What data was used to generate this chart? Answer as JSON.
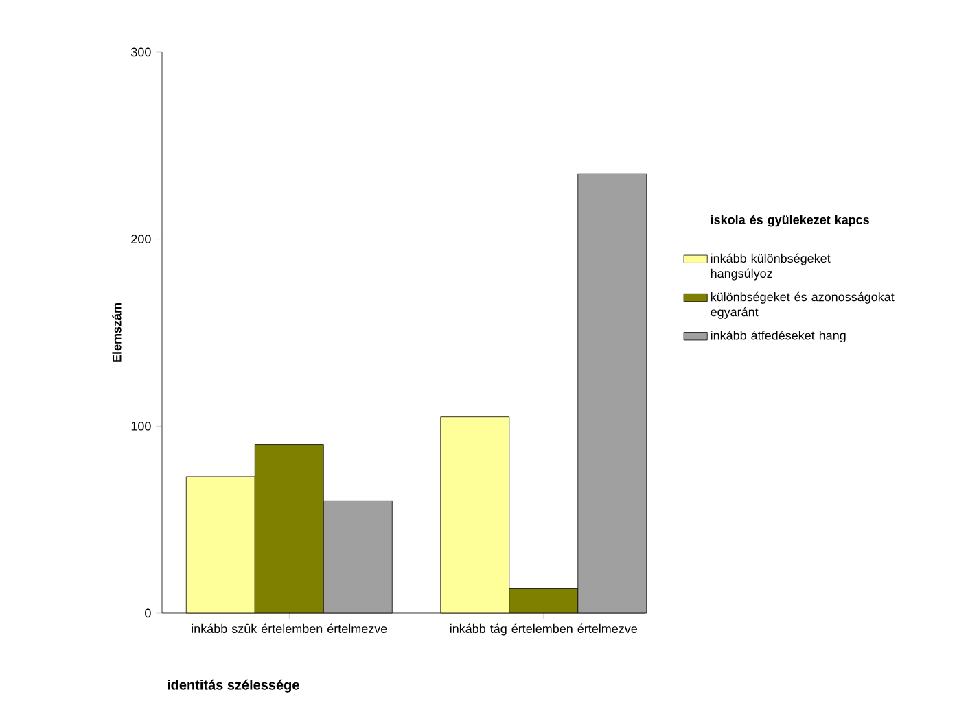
{
  "chart_data": {
    "type": "bar",
    "xlabel": "identitás szélessége",
    "ylabel": "Elemszám",
    "legend_title": "iskola és gyülekezet kapcs",
    "categories": [
      "inkább szûk értelemben értelmezve",
      "inkább tág értelemben értelmezve"
    ],
    "series": [
      {
        "name": "inkább különbségeket hangsúlyoz",
        "color": "#ffff99",
        "values": [
          73,
          105
        ]
      },
      {
        "name": "különbségeket és azonosságokat egyaránt",
        "color": "#808000",
        "values": [
          90,
          13
        ]
      },
      {
        "name": "inkább átfedéseket hang",
        "color": "#a0a0a0",
        "values": [
          60,
          235
        ]
      }
    ],
    "ylim": [
      0,
      300
    ],
    "yticks": [
      0,
      100,
      200,
      300
    ],
    "grid": false,
    "legend": "right"
  }
}
